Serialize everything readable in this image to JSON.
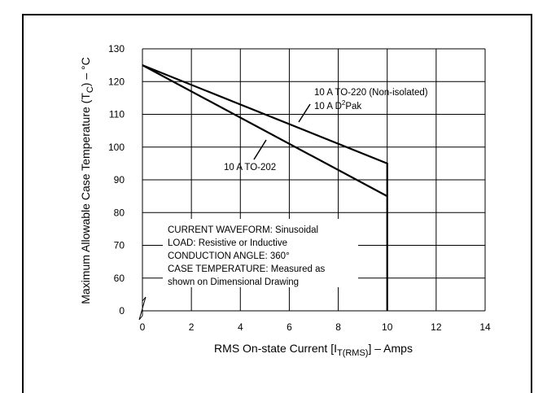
{
  "chart_data": {
    "type": "line",
    "xlabel": "RMS On-state Current [I_T(RMS)] – Amps",
    "xlabel_parts": {
      "pre": "RMS On-state Current [I",
      "sub": "T(RMS)",
      "post": "] – Amps"
    },
    "ylabel": "Maximum Allowable Case Temperature (T_C) – °C",
    "ylabel_parts": {
      "pre": "Maximum Allowable Case Temperature (T",
      "sub": "C",
      "post": ") – °C"
    },
    "xlim": [
      0,
      14
    ],
    "ylim_scale": [
      50,
      130
    ],
    "y_axis_break": true,
    "x_ticks": [
      "0",
      "2",
      "4",
      "6",
      "8",
      "10",
      "12",
      "14"
    ],
    "x_tick_values": [
      0,
      2,
      4,
      6,
      8,
      10,
      12,
      14
    ],
    "y_ticks": [
      "0",
      "60",
      "70",
      "80",
      "90",
      "100",
      "110",
      "120",
      "130"
    ],
    "y_tick_values": [
      0,
      60,
      70,
      80,
      90,
      100,
      110,
      120,
      130
    ],
    "grid": true,
    "series": [
      {
        "name": "10 A TO-220 (Non-isolated) / 10 A D²Pak",
        "x": [
          0,
          10,
          10
        ],
        "y": [
          125,
          95,
          0
        ]
      },
      {
        "name": "10 A TO-202",
        "x": [
          0,
          10
        ],
        "y": [
          125,
          85
        ]
      }
    ],
    "annotations": {
      "to220": "10 A TO-220 (Non-isolated)",
      "d2pak_pre": "10 A D",
      "d2pak_sup": "2",
      "d2pak_post": "Pak",
      "to202": "10 A TO-202",
      "notes": [
        "CURRENT WAVEFORM: Sinusoidal",
        "LOAD: Resistive or Inductive",
        "CONDUCTION ANGLE: 360°",
        "CASE TEMPERATURE: Measured as",
        "shown on Dimensional Drawing"
      ]
    }
  }
}
